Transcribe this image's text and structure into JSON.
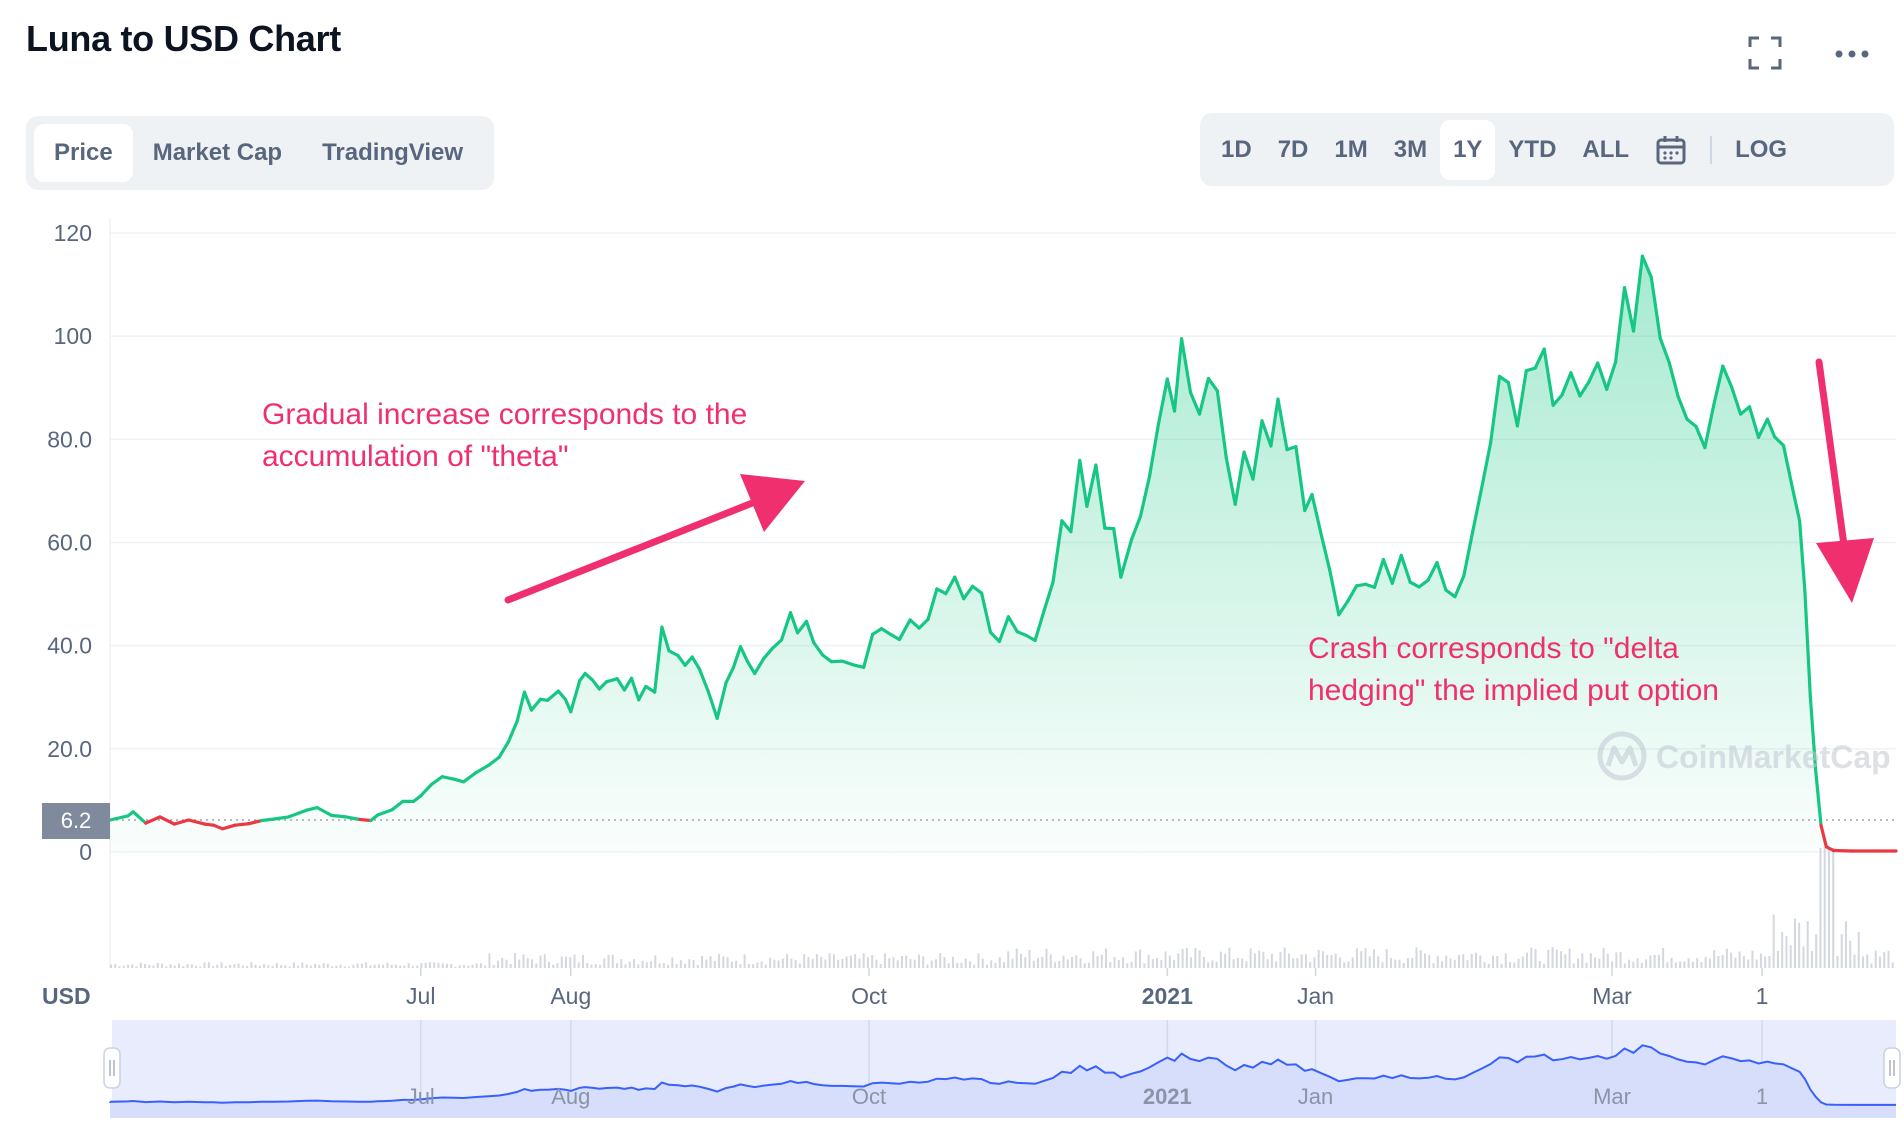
{
  "header": {
    "title": "Luna to USD Chart"
  },
  "icons": {
    "fullscreen": "fullscreen-icon",
    "more": "more-horizontal-icon",
    "calendar": "calendar-icon"
  },
  "tabs": [
    {
      "label": "Price",
      "active": true
    },
    {
      "label": "Market Cap",
      "active": false
    },
    {
      "label": "TradingView",
      "active": false
    }
  ],
  "ranges": [
    {
      "label": "1D",
      "active": false
    },
    {
      "label": "7D",
      "active": false
    },
    {
      "label": "1M",
      "active": false
    },
    {
      "label": "3M",
      "active": false
    },
    {
      "label": "1Y",
      "active": true
    },
    {
      "label": "YTD",
      "active": false
    },
    {
      "label": "ALL",
      "active": false
    }
  ],
  "log_label": "LOG",
  "annotations": {
    "theta_line1": "Gradual increase corresponds to the",
    "theta_line2": "accumulation of \"theta\"",
    "crash_line1": "Crash corresponds to \"delta",
    "crash_line2": "hedging\" the implied put option"
  },
  "watermark": "CoinMarketCap",
  "colors": {
    "up": "#16c784",
    "down": "#ea3943",
    "annotation": "#f0306e",
    "navigator": "#3861fb"
  },
  "chart_data": {
    "type": "area",
    "title": "",
    "xlabel": "",
    "ylabel": "",
    "currency_label": "USD",
    "ylim": [
      0,
      120
    ],
    "y_ticks": [
      "120",
      "100",
      "80.0",
      "60.0",
      "40.0",
      "20.0",
      "0"
    ],
    "current_price_label": "6.2",
    "current_price": 6.2,
    "x_ticks": [
      {
        "label": "Jul",
        "bold": false,
        "t": 0.174
      },
      {
        "label": "Aug",
        "bold": false,
        "t": 0.258
      },
      {
        "label": "Oct",
        "bold": false,
        "t": 0.425
      },
      {
        "label": "2021",
        "bold": true,
        "t": 0.592
      },
      {
        "label": "Jan",
        "bold": false,
        "t": 0.675
      },
      {
        "label": "Mar",
        "bold": false,
        "t": 0.841
      },
      {
        "label": "1",
        "bold": false,
        "t": 0.925
      }
    ],
    "series": [
      {
        "values": [
          [
            0.0,
            6.2
          ],
          [
            0.01,
            7.0
          ],
          [
            0.013,
            7.8
          ],
          [
            0.02,
            5.6
          ],
          [
            0.028,
            6.8
          ],
          [
            0.036,
            5.4
          ],
          [
            0.044,
            6.2
          ],
          [
            0.053,
            5.4
          ],
          [
            0.058,
            5.2
          ],
          [
            0.063,
            4.5
          ],
          [
            0.07,
            5.2
          ],
          [
            0.078,
            5.5
          ],
          [
            0.085,
            6.1
          ],
          [
            0.092,
            6.4
          ],
          [
            0.1,
            6.8
          ],
          [
            0.11,
            8.1
          ],
          [
            0.116,
            8.6
          ],
          [
            0.124,
            7.1
          ],
          [
            0.132,
            6.8
          ],
          [
            0.14,
            6.3
          ],
          [
            0.146,
            6.1
          ],
          [
            0.15,
            7.2
          ],
          [
            0.158,
            8.2
          ],
          [
            0.164,
            9.8
          ],
          [
            0.17,
            9.8
          ],
          [
            0.174,
            10.9
          ],
          [
            0.18,
            13.1
          ],
          [
            0.186,
            14.6
          ],
          [
            0.193,
            14.1
          ],
          [
            0.198,
            13.6
          ],
          [
            0.205,
            15.4
          ],
          [
            0.212,
            16.8
          ],
          [
            0.218,
            18.4
          ],
          [
            0.223,
            21.3
          ],
          [
            0.228,
            25.4
          ],
          [
            0.232,
            31.0
          ],
          [
            0.236,
            27.5
          ],
          [
            0.241,
            29.6
          ],
          [
            0.245,
            29.4
          ],
          [
            0.251,
            31.2
          ],
          [
            0.255,
            29.6
          ],
          [
            0.258,
            27.2
          ],
          [
            0.263,
            33.2
          ],
          [
            0.266,
            34.6
          ],
          [
            0.27,
            33.4
          ],
          [
            0.274,
            31.6
          ],
          [
            0.278,
            33.0
          ],
          [
            0.284,
            33.6
          ],
          [
            0.288,
            31.4
          ],
          [
            0.292,
            33.7
          ],
          [
            0.296,
            29.5
          ],
          [
            0.3,
            32.1
          ],
          [
            0.305,
            31.0
          ],
          [
            0.309,
            43.6
          ],
          [
            0.313,
            39.0
          ],
          [
            0.318,
            38.1
          ],
          [
            0.322,
            36.2
          ],
          [
            0.326,
            37.8
          ],
          [
            0.33,
            35.5
          ],
          [
            0.335,
            31.1
          ],
          [
            0.34,
            25.9
          ],
          [
            0.345,
            32.9
          ],
          [
            0.349,
            35.7
          ],
          [
            0.353,
            39.8
          ],
          [
            0.357,
            36.9
          ],
          [
            0.361,
            34.6
          ],
          [
            0.366,
            37.5
          ],
          [
            0.371,
            39.5
          ],
          [
            0.376,
            41.1
          ],
          [
            0.381,
            46.4
          ],
          [
            0.385,
            42.5
          ],
          [
            0.39,
            44.7
          ],
          [
            0.394,
            40.6
          ],
          [
            0.399,
            38.2
          ],
          [
            0.404,
            36.9
          ],
          [
            0.41,
            37.0
          ],
          [
            0.416,
            36.3
          ],
          [
            0.422,
            35.8
          ],
          [
            0.427,
            42.2
          ],
          [
            0.432,
            43.3
          ],
          [
            0.437,
            42.2
          ],
          [
            0.442,
            41.2
          ],
          [
            0.448,
            45.0
          ],
          [
            0.453,
            43.4
          ],
          [
            0.458,
            45.1
          ],
          [
            0.463,
            51.0
          ],
          [
            0.468,
            50.1
          ],
          [
            0.473,
            53.3
          ],
          [
            0.478,
            49.1
          ],
          [
            0.483,
            51.5
          ],
          [
            0.488,
            50.2
          ],
          [
            0.493,
            42.6
          ],
          [
            0.498,
            40.8
          ],
          [
            0.503,
            45.6
          ],
          [
            0.508,
            42.7
          ],
          [
            0.513,
            42.0
          ],
          [
            0.518,
            41.0
          ],
          [
            0.523,
            46.8
          ],
          [
            0.528,
            52.3
          ],
          [
            0.533,
            64.2
          ],
          [
            0.538,
            62.1
          ],
          [
            0.543,
            75.9
          ],
          [
            0.547,
            67.0
          ],
          [
            0.552,
            75.0
          ],
          [
            0.557,
            62.8
          ],
          [
            0.562,
            62.7
          ],
          [
            0.566,
            53.3
          ],
          [
            0.572,
            60.6
          ],
          [
            0.577,
            65.1
          ],
          [
            0.582,
            72.8
          ],
          [
            0.587,
            82.9
          ],
          [
            0.592,
            91.7
          ],
          [
            0.596,
            85.5
          ],
          [
            0.6,
            99.5
          ],
          [
            0.605,
            89.1
          ],
          [
            0.61,
            84.9
          ],
          [
            0.615,
            91.8
          ],
          [
            0.62,
            89.4
          ],
          [
            0.625,
            76.4
          ],
          [
            0.63,
            67.4
          ],
          [
            0.635,
            77.5
          ],
          [
            0.64,
            72.3
          ],
          [
            0.645,
            83.6
          ],
          [
            0.65,
            78.7
          ],
          [
            0.654,
            87.8
          ],
          [
            0.659,
            78.0
          ],
          [
            0.664,
            78.6
          ],
          [
            0.669,
            66.2
          ],
          [
            0.673,
            69.3
          ],
          [
            0.678,
            61.8
          ],
          [
            0.683,
            54.6
          ],
          [
            0.688,
            46.0
          ],
          [
            0.693,
            48.6
          ],
          [
            0.698,
            51.6
          ],
          [
            0.703,
            51.9
          ],
          [
            0.708,
            51.3
          ],
          [
            0.713,
            56.7
          ],
          [
            0.718,
            52.1
          ],
          [
            0.723,
            57.5
          ],
          [
            0.728,
            52.3
          ],
          [
            0.733,
            51.4
          ],
          [
            0.738,
            52.7
          ],
          [
            0.743,
            56.1
          ],
          [
            0.748,
            50.8
          ],
          [
            0.753,
            49.5
          ],
          [
            0.758,
            53.5
          ],
          [
            0.763,
            62.1
          ],
          [
            0.768,
            70.5
          ],
          [
            0.773,
            79.3
          ],
          [
            0.778,
            92.2
          ],
          [
            0.783,
            91.0
          ],
          [
            0.788,
            82.6
          ],
          [
            0.793,
            93.3
          ],
          [
            0.798,
            93.8
          ],
          [
            0.803,
            97.5
          ],
          [
            0.808,
            86.6
          ],
          [
            0.813,
            88.6
          ],
          [
            0.818,
            92.9
          ],
          [
            0.823,
            88.4
          ],
          [
            0.828,
            91.1
          ],
          [
            0.833,
            94.8
          ],
          [
            0.838,
            89.7
          ],
          [
            0.843,
            95.0
          ],
          [
            0.848,
            109.4
          ],
          [
            0.853,
            101.0
          ],
          [
            0.858,
            115.5
          ],
          [
            0.863,
            111.4
          ],
          [
            0.868,
            99.6
          ],
          [
            0.873,
            94.9
          ],
          [
            0.878,
            88.3
          ],
          [
            0.883,
            83.9
          ],
          [
            0.888,
            82.5
          ],
          [
            0.893,
            78.4
          ],
          [
            0.898,
            86.7
          ],
          [
            0.903,
            94.2
          ],
          [
            0.908,
            90.1
          ],
          [
            0.913,
            84.9
          ],
          [
            0.918,
            86.3
          ],
          [
            0.923,
            80.4
          ],
          [
            0.928,
            83.9
          ],
          [
            0.932,
            80.5
          ],
          [
            0.937,
            78.8
          ],
          [
            0.942,
            70.6
          ],
          [
            0.946,
            64.2
          ],
          [
            0.949,
            50.5
          ],
          [
            0.952,
            30.2
          ],
          [
            0.955,
            16.0
          ],
          [
            0.958,
            5.2
          ],
          [
            0.961,
            1.0
          ],
          [
            0.965,
            0.3
          ],
          [
            0.975,
            0.2
          ],
          [
            0.99,
            0.2
          ],
          [
            1.0,
            0.2
          ]
        ]
      }
    ]
  }
}
